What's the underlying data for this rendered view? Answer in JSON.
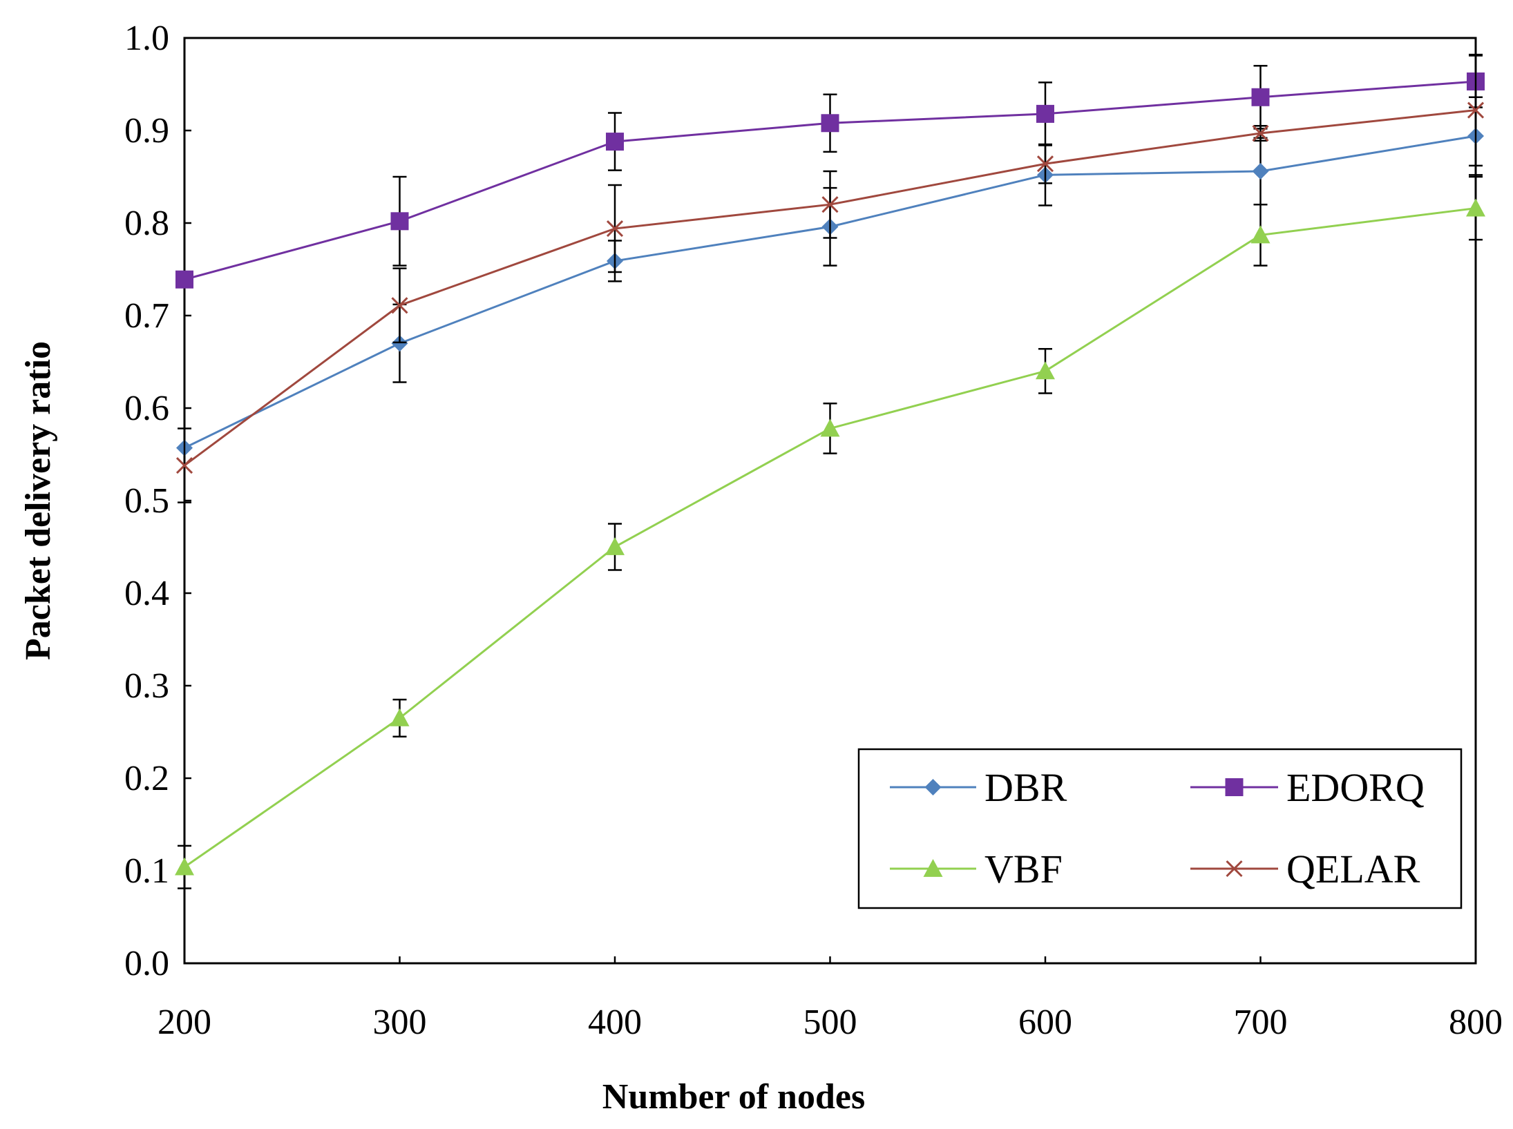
{
  "chart_data": {
    "type": "line",
    "title": "",
    "xlabel": "Number of nodes",
    "ylabel": "Packet delivery ratio",
    "x": [
      200,
      300,
      400,
      500,
      600,
      700,
      800
    ],
    "xlim": [
      200,
      800
    ],
    "ylim": [
      0.0,
      1.0
    ],
    "x_ticks": [
      "200",
      "300",
      "400",
      "500",
      "600",
      "700",
      "800"
    ],
    "y_ticks": [
      "0.0",
      "0.1",
      "0.2",
      "0.3",
      "0.4",
      "0.5",
      "0.6",
      "0.7",
      "0.8",
      "0.9",
      "1.0"
    ],
    "grid": false,
    "legend_position": "bottom-right",
    "series": [
      {
        "name": "DBR",
        "color": "#4f81bd",
        "marker": "diamond",
        "values": [
          0.557,
          0.67,
          0.759,
          0.796,
          0.852,
          0.856,
          0.894
        ],
        "error": [
          0.0,
          0.042,
          0.022,
          0.042,
          0.033,
          0.036,
          0.042
        ]
      },
      {
        "name": "EDORQ",
        "color": "#7030a0",
        "marker": "square",
        "values": [
          0.739,
          0.802,
          0.888,
          0.908,
          0.918,
          0.936,
          0.953
        ],
        "error": [
          0.0,
          0.048,
          0.031,
          0.031,
          0.034,
          0.034,
          0.028
        ]
      },
      {
        "name": "VBF",
        "color": "#92d050",
        "marker": "triangle",
        "values": [
          0.104,
          0.265,
          0.45,
          0.578,
          0.64,
          0.787,
          0.816
        ],
        "error": [
          0.023,
          0.02,
          0.025,
          0.027,
          0.024,
          0.033,
          0.034
        ]
      },
      {
        "name": "QELAR",
        "color": "#a0483e",
        "marker": "x",
        "values": [
          0.538,
          0.711,
          0.794,
          0.82,
          0.864,
          0.897,
          0.922
        ],
        "error": [
          0.04,
          0.04,
          0.047,
          0.036,
          0.021,
          0.008,
          0.06
        ]
      }
    ]
  }
}
